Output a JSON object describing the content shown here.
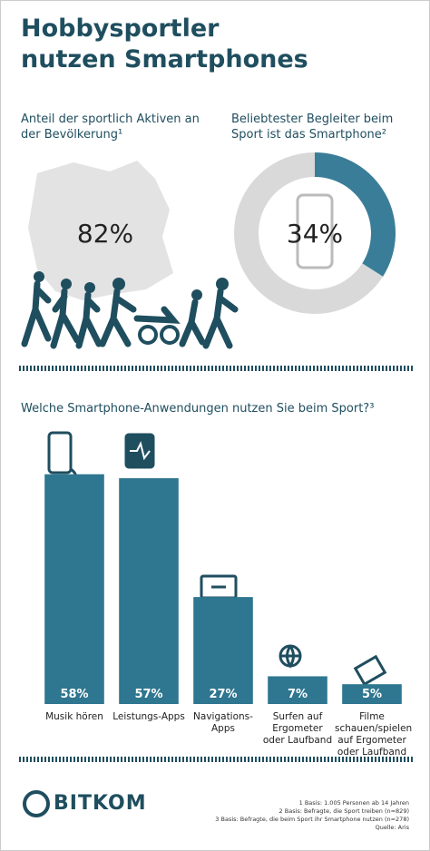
{
  "title": "Hobbysportler nutzen Smartphones",
  "chart_data": [
    {
      "type": "stat",
      "title": "Anteil der sportlich Aktiven an der Bevölkerung¹",
      "values": [
        82
      ],
      "value_labels": [
        "82%"
      ]
    },
    {
      "type": "donut",
      "title": "Beliebtester Begleiter beim Sport ist das Smartphone²",
      "values": [
        34
      ],
      "value_labels": [
        "34%"
      ],
      "color": "#3a7d98",
      "rest_color": "#d9d9d9"
    },
    {
      "type": "bar",
      "title": "Welche Smartphone-Anwendungen nutzen Sie beim Sport?³",
      "categories": [
        "Musik hören",
        "Leistungs-Apps",
        "Navigations-Apps",
        "Surfen auf Ergometer oder Laufband",
        "Filme schauen/spielen auf Ergometer oder Laufband"
      ],
      "values": [
        58,
        57,
        27,
        7,
        5
      ],
      "value_labels": [
        "58%",
        "57%",
        "27%",
        "7%",
        "5%"
      ],
      "color": "#2f7690",
      "ylim": [
        0,
        60
      ]
    }
  ],
  "footnotes": [
    "1 Basis: 1.005 Personen ab 14 Jahren",
    "2 Basis: Befragte, die Sport treiben (n=829)",
    "3 Basis: Befragte, die beim Sport ihr Smartphone nutzen (n=278)",
    "Quelle: Aris"
  ],
  "logo": "BITKOM"
}
